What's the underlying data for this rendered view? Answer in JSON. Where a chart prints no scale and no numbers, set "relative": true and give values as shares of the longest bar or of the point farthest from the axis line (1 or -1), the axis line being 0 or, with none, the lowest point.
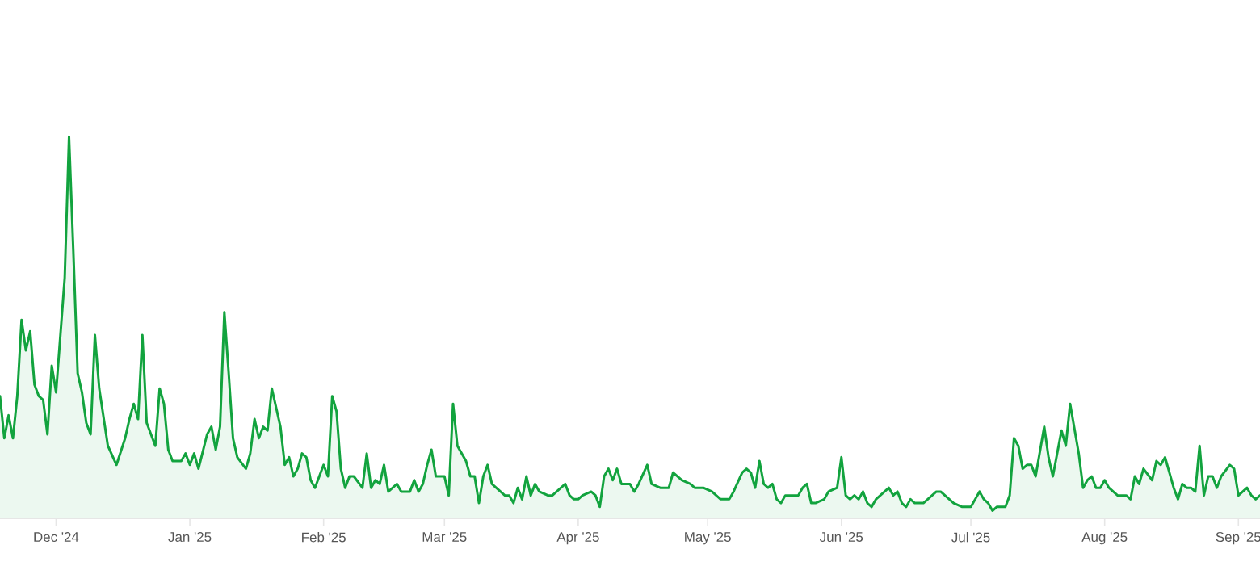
{
  "chart_data": {
    "type": "area",
    "relative": true,
    "color": "#12a33e",
    "xlim": [
      "2024-11-18",
      "2025-09-06"
    ],
    "xticks": [
      {
        "value": "2024-12-01",
        "label": "Dec '24"
      },
      {
        "value": "2025-01-01",
        "label": "Jan '25"
      },
      {
        "value": "2025-02-01",
        "label": "Feb '25"
      },
      {
        "value": "2025-03-01",
        "label": "Mar '25"
      },
      {
        "value": "2025-04-01",
        "label": "Apr '25"
      },
      {
        "value": "2025-05-01",
        "label": "May '25"
      },
      {
        "value": "2025-06-01",
        "label": "Jun '25"
      },
      {
        "value": "2025-07-01",
        "label": "Jul '25"
      },
      {
        "value": "2025-08-01",
        "label": "Aug '25"
      },
      {
        "value": "2025-09-01",
        "label": "Sep '25"
      }
    ],
    "x": [
      "2024-11-18",
      "2024-11-19",
      "2024-11-20",
      "2024-11-21",
      "2024-11-22",
      "2024-11-23",
      "2024-11-24",
      "2024-11-25",
      "2024-11-26",
      "2024-11-27",
      "2024-11-28",
      "2024-11-29",
      "2024-11-30",
      "2024-12-01",
      "2024-12-03",
      "2024-12-04",
      "2024-12-05",
      "2024-12-06",
      "2024-12-07",
      "2024-12-08",
      "2024-12-09",
      "2024-12-10",
      "2024-12-11",
      "2024-12-13",
      "2024-12-15",
      "2024-12-17",
      "2024-12-18",
      "2024-12-19",
      "2024-12-20",
      "2024-12-21",
      "2024-12-22",
      "2024-12-24",
      "2024-12-25",
      "2024-12-26",
      "2024-12-27",
      "2024-12-28",
      "2024-12-30",
      "2024-12-31",
      "2025-01-01",
      "2025-01-02",
      "2025-01-03",
      "2025-01-05",
      "2025-01-06",
      "2025-01-07",
      "2025-01-08",
      "2025-01-09",
      "2025-01-10",
      "2025-01-11",
      "2025-01-12",
      "2025-01-14",
      "2025-01-15",
      "2025-01-16",
      "2025-01-17",
      "2025-01-18",
      "2025-01-19",
      "2025-01-20",
      "2025-01-22",
      "2025-01-23",
      "2025-01-24",
      "2025-01-25",
      "2025-01-26",
      "2025-01-27",
      "2025-01-28",
      "2025-01-29",
      "2025-01-30",
      "2025-02-01",
      "2025-02-02",
      "2025-02-03",
      "2025-02-04",
      "2025-02-05",
      "2025-02-06",
      "2025-02-07",
      "2025-02-08",
      "2025-02-10",
      "2025-02-11",
      "2025-02-12",
      "2025-02-13",
      "2025-02-14",
      "2025-02-15",
      "2025-02-16",
      "2025-02-18",
      "2025-02-19",
      "2025-02-21",
      "2025-02-22",
      "2025-02-23",
      "2025-02-24",
      "2025-02-25",
      "2025-02-26",
      "2025-02-27",
      "2025-02-28",
      "2025-03-01",
      "2025-03-02",
      "2025-03-03",
      "2025-03-04",
      "2025-03-06",
      "2025-03-07",
      "2025-03-08",
      "2025-03-09",
      "2025-03-10",
      "2025-03-11",
      "2025-03-12",
      "2025-03-13",
      "2025-03-15",
      "2025-03-16",
      "2025-03-17",
      "2025-03-18",
      "2025-03-19",
      "2025-03-20",
      "2025-03-21",
      "2025-03-22",
      "2025-03-23",
      "2025-03-25",
      "2025-03-26",
      "2025-03-27",
      "2025-03-29",
      "2025-03-30",
      "2025-03-31",
      "2025-04-01",
      "2025-04-02",
      "2025-04-04",
      "2025-04-05",
      "2025-04-06",
      "2025-04-07",
      "2025-04-08",
      "2025-04-09",
      "2025-04-10",
      "2025-04-11",
      "2025-04-13",
      "2025-04-14",
      "2025-04-15",
      "2025-04-17",
      "2025-04-18",
      "2025-04-20",
      "2025-04-21",
      "2025-04-22",
      "2025-04-23",
      "2025-04-25",
      "2025-04-27",
      "2025-04-28",
      "2025-04-29",
      "2025-04-30",
      "2025-05-02",
      "2025-05-04",
      "2025-05-06",
      "2025-05-07",
      "2025-05-09",
      "2025-05-10",
      "2025-05-11",
      "2025-05-12",
      "2025-05-13",
      "2025-05-14",
      "2025-05-15",
      "2025-05-16",
      "2025-05-17",
      "2025-05-18",
      "2025-05-19",
      "2025-05-21",
      "2025-05-22",
      "2025-05-23",
      "2025-05-24",
      "2025-05-25",
      "2025-05-26",
      "2025-05-28",
      "2025-05-29",
      "2025-05-31",
      "2025-06-01",
      "2025-06-02",
      "2025-06-03",
      "2025-06-04",
      "2025-06-05",
      "2025-06-06",
      "2025-06-07",
      "2025-06-08",
      "2025-06-09",
      "2025-06-11",
      "2025-06-12",
      "2025-06-13",
      "2025-06-14",
      "2025-06-15",
      "2025-06-16",
      "2025-06-17",
      "2025-06-18",
      "2025-06-20",
      "2025-06-21",
      "2025-06-23",
      "2025-06-24",
      "2025-06-26",
      "2025-06-27",
      "2025-06-29",
      "2025-06-30",
      "2025-07-01",
      "2025-07-02",
      "2025-07-03",
      "2025-07-04",
      "2025-07-05",
      "2025-07-06",
      "2025-07-07",
      "2025-07-09",
      "2025-07-10",
      "2025-07-11",
      "2025-07-12",
      "2025-07-13",
      "2025-07-14",
      "2025-07-15",
      "2025-07-16",
      "2025-07-18",
      "2025-07-19",
      "2025-07-20",
      "2025-07-21",
      "2025-07-22",
      "2025-07-23",
      "2025-07-24",
      "2025-07-26",
      "2025-07-27",
      "2025-07-28",
      "2025-07-29",
      "2025-07-30",
      "2025-07-31",
      "2025-08-01",
      "2025-08-02",
      "2025-08-04",
      "2025-08-06",
      "2025-08-07",
      "2025-08-08",
      "2025-08-09",
      "2025-08-10",
      "2025-08-12",
      "2025-08-13",
      "2025-08-14",
      "2025-08-15",
      "2025-08-17",
      "2025-08-18",
      "2025-08-19",
      "2025-08-20",
      "2025-08-21",
      "2025-08-22",
      "2025-08-23",
      "2025-08-24",
      "2025-08-25",
      "2025-08-26",
      "2025-08-27",
      "2025-08-28",
      "2025-08-30",
      "2025-08-31",
      "2025-09-01",
      "2025-09-02",
      "2025-09-03",
      "2025-09-04",
      "2025-09-05",
      "2025-09-06"
    ],
    "values": [
      0.32,
      0.21,
      0.27,
      0.21,
      0.32,
      0.52,
      0.44,
      0.49,
      0.35,
      0.32,
      0.31,
      0.22,
      0.4,
      0.33,
      0.63,
      1.0,
      0.7,
      0.38,
      0.33,
      0.25,
      0.22,
      0.48,
      0.34,
      0.19,
      0.14,
      0.21,
      0.26,
      0.3,
      0.26,
      0.48,
      0.25,
      0.19,
      0.34,
      0.3,
      0.18,
      0.15,
      0.15,
      0.17,
      0.14,
      0.17,
      0.13,
      0.22,
      0.24,
      0.18,
      0.24,
      0.54,
      0.38,
      0.21,
      0.16,
      0.13,
      0.17,
      0.26,
      0.21,
      0.24,
      0.23,
      0.34,
      0.24,
      0.14,
      0.16,
      0.11,
      0.13,
      0.17,
      0.16,
      0.1,
      0.08,
      0.14,
      0.11,
      0.32,
      0.28,
      0.13,
      0.08,
      0.11,
      0.11,
      0.08,
      0.17,
      0.08,
      0.1,
      0.09,
      0.14,
      0.07,
      0.09,
      0.07,
      0.07,
      0.1,
      0.07,
      0.09,
      0.14,
      0.18,
      0.11,
      0.11,
      0.11,
      0.06,
      0.3,
      0.19,
      0.15,
      0.11,
      0.11,
      0.04,
      0.11,
      0.14,
      0.09,
      0.08,
      0.06,
      0.06,
      0.04,
      0.08,
      0.05,
      0.11,
      0.06,
      0.09,
      0.07,
      0.06,
      0.06,
      0.07,
      0.09,
      0.06,
      0.05,
      0.05,
      0.06,
      0.07,
      0.06,
      0.03,
      0.11,
      0.13,
      0.1,
      0.13,
      0.09,
      0.09,
      0.07,
      0.09,
      0.14,
      0.09,
      0.08,
      0.08,
      0.08,
      0.12,
      0.1,
      0.09,
      0.08,
      0.08,
      0.08,
      0.07,
      0.05,
      0.05,
      0.07,
      0.12,
      0.13,
      0.12,
      0.08,
      0.15,
      0.09,
      0.08,
      0.09,
      0.05,
      0.04,
      0.06,
      0.06,
      0.06,
      0.08,
      0.09,
      0.04,
      0.04,
      0.05,
      0.07,
      0.08,
      0.16,
      0.06,
      0.05,
      0.06,
      0.05,
      0.07,
      0.04,
      0.03,
      0.05,
      0.07,
      0.08,
      0.06,
      0.07,
      0.04,
      0.03,
      0.05,
      0.04,
      0.04,
      0.05,
      0.07,
      0.07,
      0.05,
      0.04,
      0.03,
      0.03,
      0.03,
      0.05,
      0.07,
      0.05,
      0.04,
      0.02,
      0.03,
      0.03,
      0.06,
      0.21,
      0.19,
      0.13,
      0.14,
      0.14,
      0.11,
      0.24,
      0.16,
      0.11,
      0.17,
      0.23,
      0.19,
      0.3,
      0.17,
      0.08,
      0.1,
      0.11,
      0.08,
      0.08,
      0.1,
      0.08,
      0.06,
      0.06,
      0.05,
      0.11,
      0.09,
      0.13,
      0.1,
      0.15,
      0.14,
      0.16,
      0.08,
      0.05,
      0.09,
      0.08,
      0.08,
      0.07,
      0.19,
      0.06,
      0.11,
      0.11,
      0.08,
      0.11,
      0.14,
      0.13,
      0.06,
      0.07,
      0.08,
      0.06,
      0.05,
      0.06
    ]
  }
}
